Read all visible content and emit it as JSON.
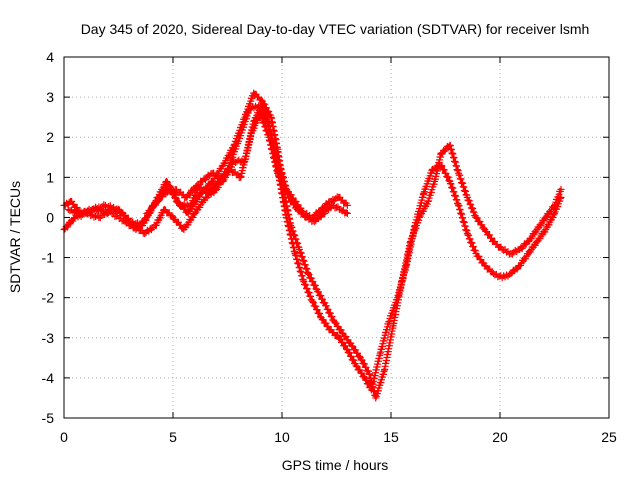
{
  "chart_data": {
    "type": "scatter",
    "title": "Day 345 of 2020, Sidereal Day-to-day VTEC variation (SDTVAR) for receiver lsmh",
    "xlabel": "GPS time / hours",
    "ylabel": "SDTVAR / TECUs",
    "xlim": [
      0,
      25
    ],
    "ylim": [
      -5,
      4
    ],
    "xticks": [
      "0",
      "5",
      "10",
      "15",
      "20",
      "25"
    ],
    "yticks": [
      "4",
      "3",
      "2",
      "1",
      "0",
      "-1",
      "-2",
      "-3",
      "-4",
      "-5"
    ],
    "grid": true,
    "marker": "plus",
    "color": "#ff0000",
    "series": [
      {
        "x": [
          0.0,
          0.3,
          0.8,
          1.5,
          2.2,
          2.8,
          3.3,
          3.8,
          4.3,
          4.7,
          5.2,
          5.7,
          6.3,
          6.8,
          7.3,
          7.8,
          8.3,
          8.7,
          9.1,
          9.5,
          9.8,
          10.1,
          10.4,
          10.8,
          11.2,
          11.6,
          12.0,
          12.4,
          12.8,
          13.2,
          13.6,
          14.0,
          14.3,
          14.7,
          15.1,
          15.5,
          15.9,
          16.3,
          16.7,
          17.0,
          17.3,
          17.7,
          18.1,
          18.5,
          18.9,
          19.3,
          19.7,
          20.1,
          20.5,
          20.9,
          21.3,
          21.7,
          22.1,
          22.5,
          22.8
        ],
        "y": [
          0.3,
          0.4,
          0.1,
          0.2,
          0.1,
          -0.1,
          -0.3,
          0.0,
          0.5,
          0.9,
          0.4,
          0.1,
          0.6,
          0.9,
          1.3,
          1.8,
          2.5,
          3.1,
          2.9,
          2.5,
          1.7,
          0.6,
          -0.2,
          -0.8,
          -1.4,
          -1.8,
          -2.2,
          -2.6,
          -2.9,
          -3.2,
          -3.5,
          -3.9,
          -4.5,
          -3.8,
          -2.7,
          -1.6,
          -0.6,
          0.0,
          0.4,
          0.9,
          1.6,
          1.8,
          1.1,
          0.5,
          0.0,
          -0.3,
          -0.6,
          -0.8,
          -0.9,
          -0.8,
          -0.6,
          -0.3,
          0.0,
          0.3,
          0.7
        ]
      },
      {
        "x": [
          0.0,
          0.5,
          1.0,
          1.6,
          2.2,
          2.7,
          3.2,
          3.7,
          4.2,
          4.6,
          5.0,
          5.5,
          6.0,
          6.5,
          7.0,
          7.5,
          8.0,
          8.5,
          9.0,
          9.4,
          9.8,
          10.2,
          10.6,
          11.0,
          11.4,
          11.8,
          12.2,
          12.6,
          13.0,
          13.4,
          13.8,
          14.1,
          14.5,
          14.9,
          15.3,
          15.7,
          16.1,
          16.5,
          16.9,
          17.3,
          17.7,
          18.1,
          18.5,
          18.9,
          19.3,
          19.7,
          20.1,
          20.5,
          20.9,
          21.3,
          21.7,
          22.1,
          22.5,
          22.8
        ],
        "y": [
          -0.3,
          0.0,
          0.1,
          0.0,
          0.2,
          0.1,
          -0.2,
          -0.4,
          -0.2,
          0.2,
          0.0,
          -0.3,
          0.1,
          0.5,
          0.7,
          1.2,
          1.9,
          2.7,
          2.8,
          2.3,
          1.2,
          0.0,
          -0.9,
          -1.6,
          -2.1,
          -2.5,
          -2.8,
          -3.0,
          -3.3,
          -3.7,
          -4.0,
          -4.3,
          -3.4,
          -2.6,
          -2.0,
          -1.2,
          -0.2,
          0.6,
          1.2,
          1.3,
          0.9,
          0.3,
          -0.4,
          -0.9,
          -1.2,
          -1.4,
          -1.5,
          -1.4,
          -1.2,
          -0.9,
          -0.6,
          -0.3,
          0.1,
          0.5
        ]
      },
      {
        "x": [
          0.2,
          0.7,
          1.3,
          1.9,
          2.5,
          3.0,
          3.6,
          4.1,
          4.6,
          5.1,
          5.6,
          6.1,
          6.6,
          7.1,
          7.6,
          8.1,
          8.6,
          9.0,
          9.4,
          9.8,
          10.2,
          10.6,
          11.0,
          11.4,
          11.8,
          12.2,
          12.6,
          13.0
        ],
        "y": [
          0.2,
          0.1,
          0.2,
          0.3,
          0.2,
          -0.1,
          -0.2,
          0.3,
          0.6,
          0.7,
          0.5,
          0.8,
          0.6,
          0.9,
          1.2,
          1.0,
          2.1,
          2.6,
          2.0,
          1.1,
          0.7,
          0.4,
          0.1,
          0.0,
          0.2,
          0.4,
          0.5,
          0.3
        ]
      },
      {
        "x": [
          3.8,
          4.3,
          4.8,
          5.3,
          5.8,
          6.3,
          6.8,
          7.3,
          7.8,
          8.3,
          8.7,
          9.1,
          9.5,
          9.9,
          10.3,
          10.7,
          11.1,
          11.5,
          11.9,
          12.3,
          12.7,
          13.0
        ],
        "y": [
          0.1,
          0.4,
          0.8,
          0.3,
          0.3,
          0.9,
          1.1,
          0.9,
          1.4,
          1.4,
          2.4,
          2.8,
          2.1,
          1.3,
          0.5,
          0.2,
          0.0,
          -0.1,
          0.1,
          0.3,
          0.2,
          0.1
        ]
      }
    ]
  }
}
